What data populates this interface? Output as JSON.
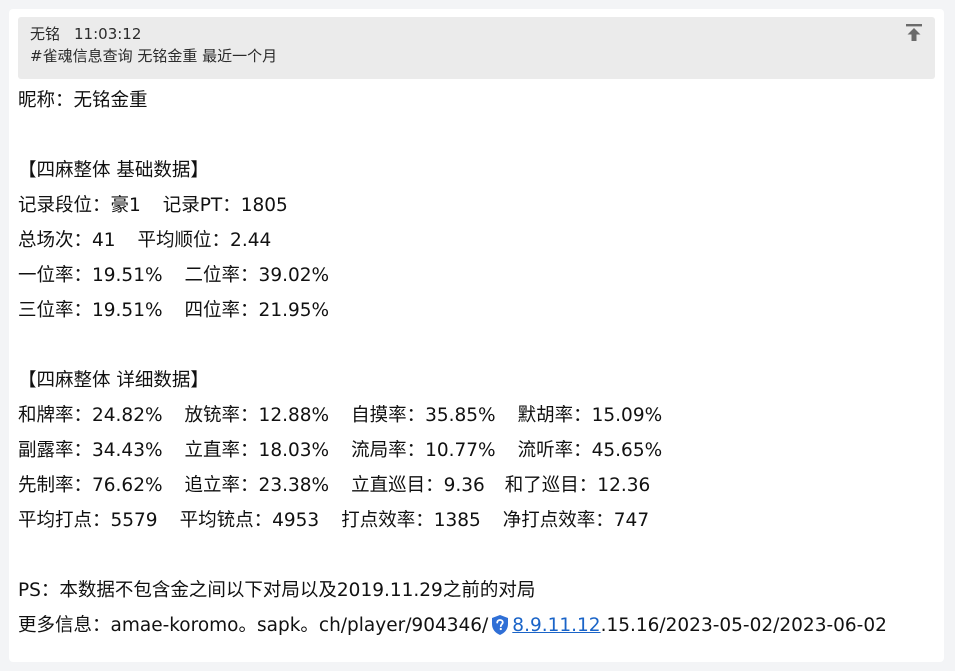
{
  "quote": {
    "sender": "无铭",
    "time": "11:03:12",
    "command": "#雀魂信息查询 无铭金重 最近一个月"
  },
  "nickname": "昵称：无铭金重",
  "basic": {
    "header": "【四麻整体 基础数据】",
    "rows": [
      [
        "记录段位：豪1",
        "记录PT：1805"
      ],
      [
        "总场次：41",
        "平均顺位：2.44"
      ],
      [
        "一位率：19.51%",
        "二位率：39.02%"
      ],
      [
        "三位率：19.51%",
        "四位率：21.95%"
      ]
    ]
  },
  "detail": {
    "header": "【四麻整体 详细数据】",
    "rows": [
      [
        "和牌率：24.82%",
        "放铳率：12.88%",
        "自摸率：35.85%",
        "默胡率：15.09%"
      ],
      [
        "副露率：34.43%",
        "立直率：18.03%",
        "流局率：10.77%",
        "流听率：45.65%"
      ],
      [
        "先制率：76.62%",
        "追立率：23.38%",
        "立直巡目：9.36",
        "和了巡目：12.36"
      ],
      [
        "平均打点：5579",
        "平均铳点：4953",
        "打点效率：1385",
        "净打点效率：747"
      ]
    ]
  },
  "ps": "PS：本数据不包含金之间以下对局以及2019.11.29之前的对局",
  "more": {
    "prefix": "更多信息：amae-koromo。sapk。ch/player/904346/",
    "link": "8.9.11.12",
    "suffix": ".15.16/2023-05-02/2023-06-02"
  }
}
